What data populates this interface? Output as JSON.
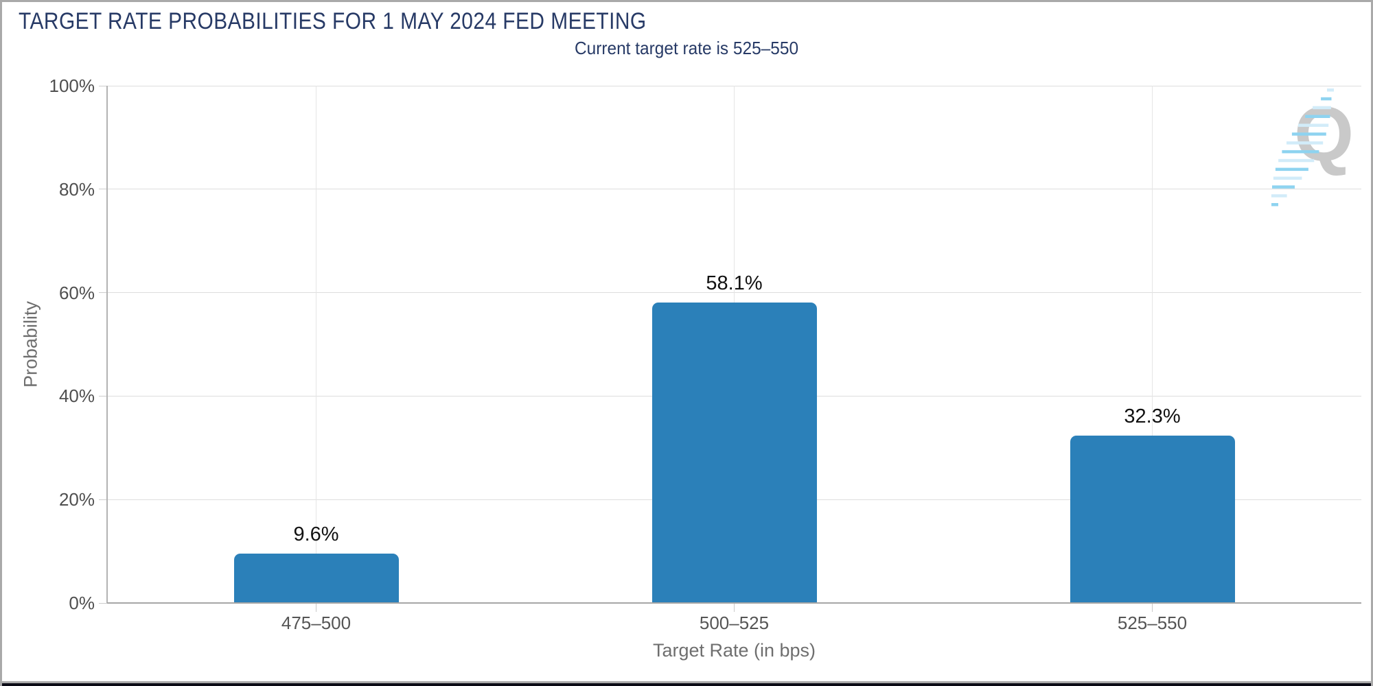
{
  "chart_data": {
    "type": "bar",
    "title": "TARGET RATE PROBABILITIES FOR 1 MAY 2024 FED MEETING",
    "subtitle": "Current target rate is 525–550",
    "categories": [
      "475–500",
      "500–525",
      "525–550"
    ],
    "values": [
      9.6,
      58.1,
      32.3
    ],
    "value_labels": [
      "9.6%",
      "58.1%",
      "32.3%"
    ],
    "xlabel": "Target Rate (in bps)",
    "ylabel": "Probability",
    "ylim": [
      0,
      100
    ],
    "ytick_values": [
      0,
      20,
      40,
      60,
      80,
      100
    ],
    "ytick_labels": [
      "0%",
      "20%",
      "40%",
      "60%",
      "80%",
      "100%"
    ],
    "grid": true,
    "legend": "none",
    "bar_color": "#2b80b9"
  },
  "watermark": {
    "letter": "Q"
  },
  "colors": {
    "title_text": "#273a66",
    "bar_fill": "#2b80b9",
    "axis_text": "#555555",
    "axis_title_text": "#6e6e6e",
    "value_label_text": "#111111",
    "gridline": "#dddddd",
    "axis_line": "#b3b3b3",
    "frame_border": "#a9a9a9",
    "bottom_strip": "#0b0b16",
    "watermark_letter": "#c9c9c9",
    "watermark_dash_bright": "#8ed3f0",
    "watermark_dash_pale": "#d2ecf9"
  }
}
